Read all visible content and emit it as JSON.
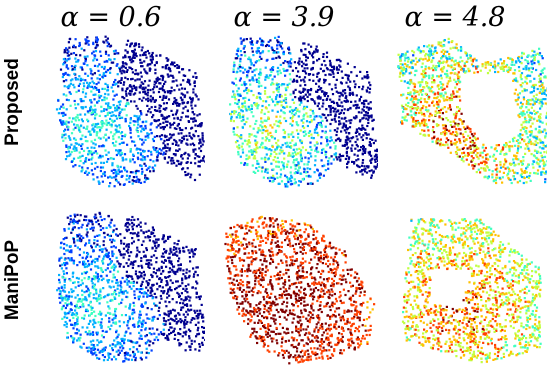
{
  "figure": {
    "columns": [
      {
        "title": "α = 0.6"
      },
      {
        "title": "α = 3.9"
      },
      {
        "title": "α = 4.8"
      }
    ],
    "rows": [
      {
        "label": "Proposed"
      },
      {
        "label": "ManiPoP"
      }
    ],
    "colormap": [
      "#00008f",
      "#0040ff",
      "#00b0ff",
      "#40ffc0",
      "#c0ff40",
      "#ffc000",
      "#ff4000",
      "#800000"
    ]
  }
}
